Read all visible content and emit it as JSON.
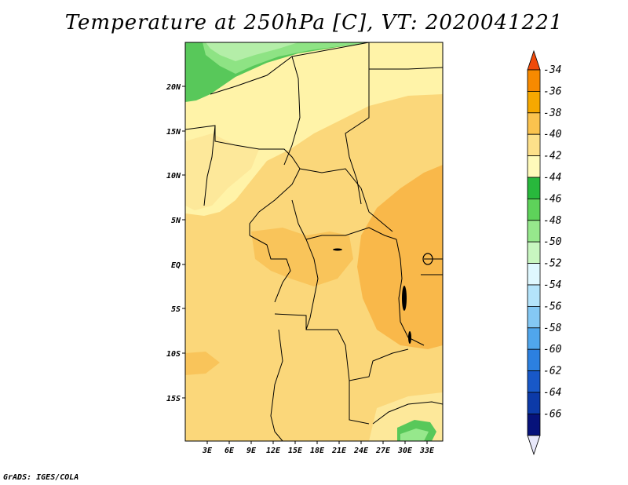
{
  "title": "Temperature at 250hPa [C], VT: 2020041221",
  "footer": "GrADS: IGES/COLA",
  "map": {
    "region": "Central Africa",
    "lat_ticks": [
      "20N",
      "15N",
      "10N",
      "5N",
      "EQ",
      "5S",
      "10S",
      "15S"
    ],
    "lon_ticks": [
      "3E",
      "6E",
      "9E",
      "12E",
      "15E",
      "18E",
      "21E",
      "24E",
      "27E",
      "30E",
      "33E"
    ],
    "extent": {
      "lon_min": 0,
      "lon_max": 35,
      "lat_min": -20,
      "lat_max": 25
    }
  },
  "colorbar": {
    "levels": [
      "-34",
      "-36",
      "-38",
      "-40",
      "-42",
      "-44",
      "-46",
      "-48",
      "-50",
      "-52",
      "-54",
      "-56",
      "-58",
      "-60",
      "-62",
      "-64",
      "-66"
    ],
    "colors": [
      "#f04a0a",
      "#f78a00",
      "#f6a800",
      "#fbc34e",
      "#fde08a",
      "#fffaba",
      "#28b83c",
      "#5ed25a",
      "#96e88c",
      "#c8f6c0",
      "#dff8ff",
      "#b4e4fb",
      "#84c8f4",
      "#50a6ec",
      "#2c80e0",
      "#1858c8",
      "#0c3aa8",
      "#06127a",
      "#e8e8fa"
    ]
  }
}
